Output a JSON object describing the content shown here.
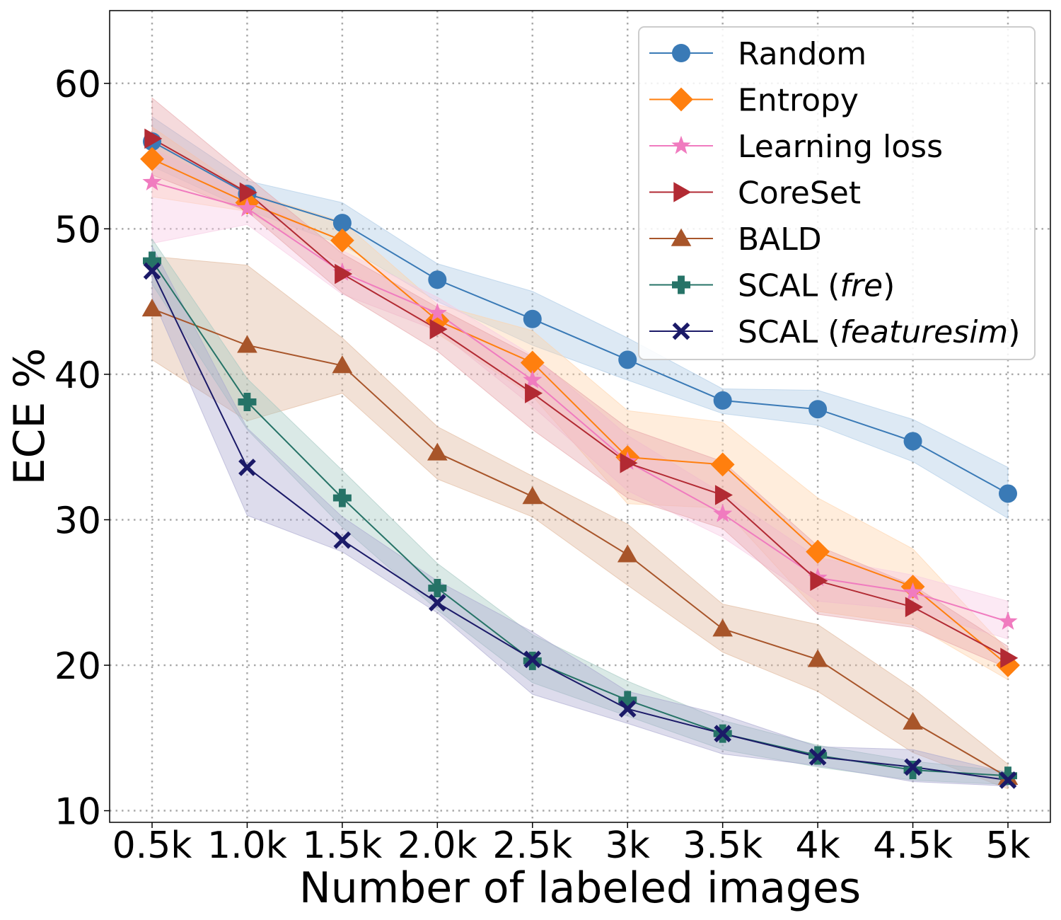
{
  "chart_data": {
    "type": "line",
    "xlabel": "Number of labeled images",
    "ylabel": "ECE %",
    "x": [
      "0.5k",
      "1.0k",
      "1.5k",
      "2.0k",
      "2.5k",
      "3k",
      "3.5k",
      "4k",
      "4.5k",
      "5k"
    ],
    "yticks": [
      "10",
      "20",
      "30",
      "40",
      "50",
      "60"
    ],
    "ylim": [
      9.2,
      65
    ],
    "grid": true,
    "legend_position": "top-right",
    "series": [
      {
        "name": "Random",
        "label_pre": "Random",
        "label_italic": "",
        "label_post": "",
        "marker": "circle",
        "color": "#3a7ab6",
        "band": "#a9c8e4",
        "values": [
          56.0,
          52.4,
          50.4,
          46.5,
          43.8,
          41.0,
          38.2,
          37.6,
          35.4,
          31.8
        ],
        "lower": [
          54.3,
          51.3,
          48.9,
          45.0,
          42.0,
          39.6,
          37.3,
          36.5,
          34.0,
          30.1
        ],
        "upper": [
          57.7,
          53.3,
          51.8,
          47.6,
          45.7,
          42.5,
          39.0,
          38.9,
          36.9,
          33.6
        ]
      },
      {
        "name": "Entropy",
        "label_pre": "Entropy",
        "label_italic": "",
        "label_post": "",
        "marker": "diamond",
        "color": "#ff7f0e",
        "band": "#ffd2a8",
        "values": [
          54.8,
          51.8,
          49.2,
          43.7,
          40.8,
          34.3,
          33.8,
          27.8,
          25.4,
          20.0
        ],
        "lower": [
          52.2,
          51.2,
          47.5,
          42.8,
          38.5,
          31.1,
          30.8,
          23.7,
          22.8,
          19.0
        ],
        "upper": [
          57.0,
          52.5,
          50.5,
          44.8,
          43.0,
          37.5,
          36.7,
          31.5,
          28.0,
          21.0
        ]
      },
      {
        "name": "Learning loss",
        "label_pre": "Learning loss",
        "label_italic": "",
        "label_post": "",
        "marker": "star",
        "color": "#f07bbf",
        "band": "#f7c9e3",
        "values": [
          53.2,
          51.4,
          47.0,
          44.2,
          39.6,
          34.0,
          30.4,
          26.0,
          25.0,
          23.0
        ],
        "lower": [
          49.0,
          50.3,
          45.5,
          43.0,
          37.8,
          32.0,
          28.8,
          24.4,
          23.8,
          21.8
        ],
        "upper": [
          55.5,
          52.5,
          48.5,
          45.3,
          41.3,
          35.8,
          31.8,
          27.4,
          26.2,
          24.4
        ]
      },
      {
        "name": "CoreSet",
        "label_pre": "CoreSet",
        "label_italic": "",
        "label_post": "",
        "marker": "triangle-right",
        "color": "#b22a33",
        "band": "#e6a3a7",
        "values": [
          56.2,
          52.5,
          46.9,
          43.1,
          38.7,
          33.9,
          31.7,
          25.8,
          24.0,
          20.5
        ],
        "lower": [
          53.7,
          51.2,
          45.6,
          41.6,
          36.2,
          31.5,
          29.4,
          23.5,
          22.6,
          19.8
        ],
        "upper": [
          59.0,
          53.6,
          48.3,
          44.6,
          41.2,
          36.3,
          34.0,
          28.2,
          25.5,
          21.3
        ]
      },
      {
        "name": "BALD",
        "label_pre": "BALD",
        "label_italic": "",
        "label_post": "",
        "marker": "triangle-up",
        "color": "#a8552a",
        "band": "#dfb598",
        "values": [
          44.5,
          42.0,
          40.6,
          34.6,
          31.6,
          27.6,
          22.5,
          20.4,
          16.1,
          12.3
        ],
        "lower": [
          41.0,
          36.8,
          38.7,
          32.8,
          30.2,
          25.5,
          20.9,
          18.2,
          14.0,
          11.5
        ],
        "upper": [
          48.1,
          47.5,
          42.5,
          36.4,
          33.0,
          29.7,
          24.2,
          22.8,
          18.4,
          13.2
        ]
      },
      {
        "name": "SCAL (fre)",
        "label_pre": "SCAL (",
        "label_italic": "fre",
        "label_post": ")",
        "marker": "plus",
        "color": "#267367",
        "band": "#a2c7c0",
        "values": [
          47.8,
          38.1,
          31.5,
          25.3,
          20.3,
          17.6,
          15.3,
          13.8,
          12.8,
          12.4
        ],
        "lower": [
          46.2,
          36.2,
          29.5,
          23.8,
          18.8,
          16.5,
          14.2,
          13.0,
          12.1,
          11.8
        ],
        "upper": [
          49.3,
          39.7,
          33.4,
          27.0,
          22.1,
          18.9,
          16.2,
          14.5,
          13.4,
          12.7
        ]
      },
      {
        "name": "SCAL (featuresim)",
        "label_pre": "SCAL (",
        "label_italic": "featuresim",
        "label_post": ")",
        "marker": "x",
        "color": "#1b1a68",
        "band": "#a9a7cf",
        "values": [
          47.1,
          33.6,
          28.6,
          24.3,
          20.4,
          17.0,
          15.3,
          13.7,
          13.0,
          12.1
        ],
        "lower": [
          45.3,
          30.3,
          27.8,
          23.6,
          18.0,
          16.0,
          13.9,
          13.1,
          12.0,
          11.7
        ],
        "upper": [
          48.8,
          36.3,
          30.2,
          25.8,
          22.3,
          18.2,
          16.6,
          14.4,
          14.2,
          12.6
        ]
      }
    ]
  }
}
